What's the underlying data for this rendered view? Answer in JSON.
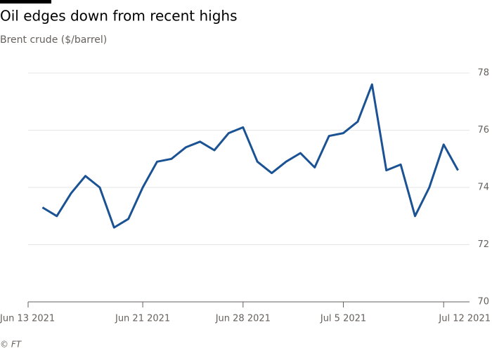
{
  "chart_data": {
    "type": "line",
    "title": "Oil edges down from recent highs",
    "subtitle": "Brent crude ($/barrel)",
    "source": "© FT",
    "x": [
      "2021-06-14",
      "2021-06-15",
      "2021-06-16",
      "2021-06-17",
      "2021-06-18",
      "2021-06-19",
      "2021-06-20",
      "2021-06-21",
      "2021-06-22",
      "2021-06-23",
      "2021-06-24",
      "2021-06-25",
      "2021-06-26",
      "2021-06-27",
      "2021-06-28",
      "2021-06-29",
      "2021-06-30",
      "2021-07-01",
      "2021-07-02",
      "2021-07-03",
      "2021-07-04",
      "2021-07-05",
      "2021-07-06",
      "2021-07-07",
      "2021-07-08",
      "2021-07-09",
      "2021-07-10",
      "2021-07-11",
      "2021-07-12",
      "2021-07-13"
    ],
    "series": [
      {
        "name": "Brent crude",
        "color": "#1a5293",
        "values": [
          73.3,
          73.0,
          73.8,
          74.4,
          74.0,
          72.6,
          72.9,
          74.0,
          74.9,
          75.0,
          75.4,
          75.6,
          75.3,
          75.9,
          76.1,
          74.9,
          74.5,
          74.9,
          75.2,
          74.7,
          75.8,
          75.9,
          76.3,
          77.6,
          74.6,
          74.8,
          73.0,
          74.0,
          75.5,
          74.6
        ]
      }
    ],
    "xlim": [
      "2021-06-13",
      "2021-07-14"
    ],
    "xticks": [
      {
        "value": "2021-06-13",
        "label": "Jun 13 2021"
      },
      {
        "value": "2021-06-21",
        "label": "Jun 21 2021"
      },
      {
        "value": "2021-06-28",
        "label": "Jun 28 2021"
      },
      {
        "value": "2021-07-05",
        "label": "Jul 5 2021"
      },
      {
        "value": "2021-07-12",
        "label": "Jul 12 2021"
      }
    ],
    "ylim": [
      70,
      78
    ],
    "yticks": [
      70,
      72,
      74,
      76,
      78
    ],
    "grid": true
  }
}
